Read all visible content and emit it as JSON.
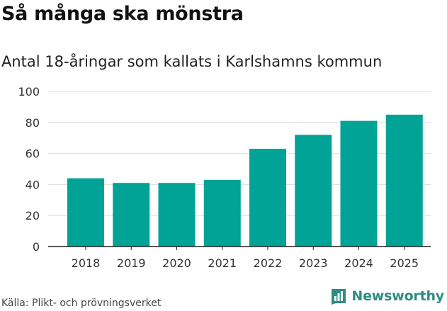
{
  "header": {
    "title": "Så många ska mönstra",
    "subtitle": "Antal 18-åringar som kallats i Karlshamns kommun"
  },
  "footer": {
    "source": "Källa: Plikt- och prövningsverket",
    "brand": "Newsworthy",
    "brand_icon": "bar-chart-logo-icon",
    "brand_color": "#2e8c84"
  },
  "chart_data": {
    "type": "bar",
    "title": "Så många ska mönstra",
    "subtitle": "Antal 18-åringar som kallats i Karlshamns kommun",
    "categories": [
      "2018",
      "2019",
      "2020",
      "2021",
      "2022",
      "2023",
      "2024",
      "2025"
    ],
    "values": [
      44,
      41,
      41,
      43,
      63,
      72,
      81,
      85
    ],
    "xlabel": "",
    "ylabel": "",
    "ylim": [
      0,
      100
    ],
    "yticks": [
      0,
      20,
      40,
      60,
      80,
      100
    ],
    "grid": true,
    "bar_color": "#00a396",
    "source": "Källa: Plikt- och prövningsverket"
  }
}
